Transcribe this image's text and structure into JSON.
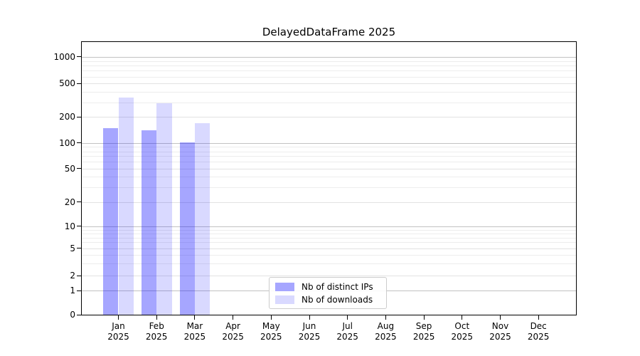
{
  "chart_data": {
    "type": "bar",
    "title": "DelayedDataFrame 2025",
    "x": {
      "categories": [
        "Jan",
        "Feb",
        "Mar",
        "Apr",
        "May",
        "Jun",
        "Jul",
        "Aug",
        "Sep",
        "Oct",
        "Nov",
        "Dec"
      ],
      "year": "2025"
    },
    "series": [
      {
        "name": "Nb of distinct IPs",
        "base_color": "#0000ff",
        "alpha": 0.35,
        "rendered_color": "#a6a6ff",
        "values": [
          150,
          140,
          102,
          0,
          0,
          0,
          0,
          0,
          0,
          0,
          0,
          0
        ]
      },
      {
        "name": "Nb of downloads",
        "base_color": "#0000ff",
        "alpha": 0.15,
        "rendered_color": "#d9d9ff",
        "values": [
          345,
          290,
          170,
          0,
          0,
          0,
          0,
          0,
          0,
          0,
          0,
          0
        ]
      }
    ],
    "yaxis": {
      "scale": "symlog",
      "ticks": [
        0,
        1,
        2,
        5,
        10,
        20,
        50,
        100,
        200,
        500,
        1000
      ],
      "major_grid_at": [
        1,
        10,
        100,
        1000
      ],
      "minor_grid_labeled": [
        2,
        5,
        20,
        50,
        200,
        500
      ],
      "ylim": [
        0,
        1450
      ]
    },
    "grid": true,
    "legend_position": "lower center",
    "colors": {
      "major_gridline": "#c2c2c2",
      "minor_gridline": "#ededed",
      "minor_gridline_labeled": "#e2e2e2",
      "spine": "#000000",
      "legend_border": "#cccccc"
    }
  }
}
